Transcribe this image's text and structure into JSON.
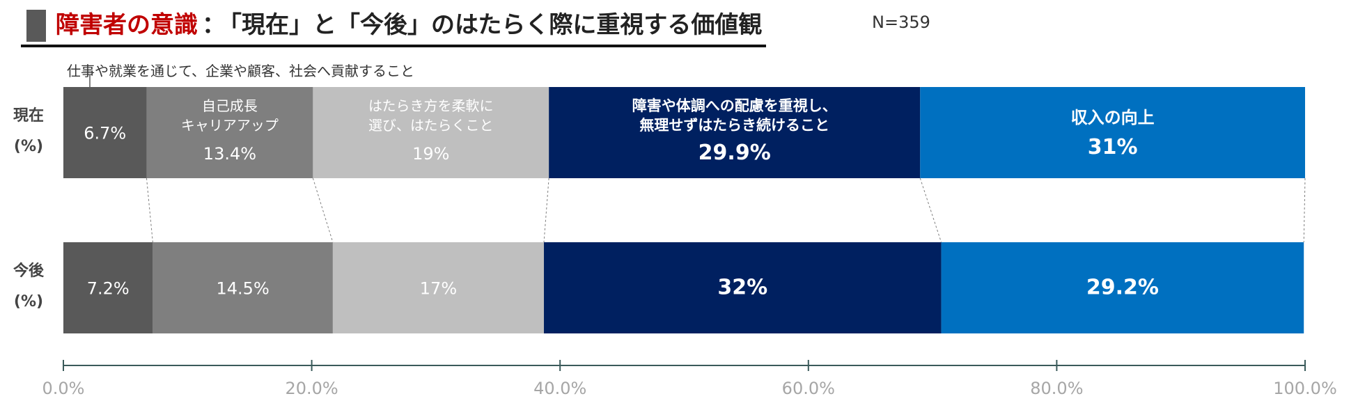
{
  "title": {
    "accent": "障害者の意識",
    "separator": "：",
    "main": "「現在」と「今後」のはたらく際に重視する価値観"
  },
  "sample_size": "N=359",
  "colors": {
    "title_accent": "#c00000",
    "seg1": "#595959",
    "seg2": "#7f7f7f",
    "seg3": "#bfbfbf",
    "seg4": "#002060",
    "seg5": "#0070c0",
    "axis": "#3a5a5a"
  },
  "chart_data": {
    "type": "bar",
    "orientation": "horizontal",
    "stacked": true,
    "percent_stacked": true,
    "categories": [
      "現在\n(%)",
      "今後\n(%)"
    ],
    "series": [
      {
        "name": "仕事や就業を通じて、企業や顧客、社会へ貢献すること",
        "values": [
          6.7,
          7.2
        ],
        "labels": [
          "6.7%",
          "7.2%"
        ]
      },
      {
        "name": "自己成長\nキャリアアップ",
        "values": [
          13.4,
          14.5
        ],
        "labels": [
          "13.4%",
          "14.5%"
        ]
      },
      {
        "name": "はたらき方を柔軟に\n選び、はたらくこと",
        "values": [
          19,
          17
        ],
        "labels": [
          "19%",
          "17%"
        ]
      },
      {
        "name": "障害や体調への配慮を重視し、\n無理せずはたらき続けること",
        "values": [
          29.9,
          32
        ],
        "labels": [
          "29.9%",
          "32%"
        ]
      },
      {
        "name": "収入の向上",
        "values": [
          31,
          29.2
        ],
        "labels": [
          "31%",
          "29.2%"
        ]
      }
    ],
    "xlim": [
      0,
      100
    ],
    "xticks": [
      "0.0%",
      "20.0%",
      "40.0%",
      "60.0%",
      "80.0%",
      "100.0%"
    ],
    "grid": false,
    "legend": "inline labels inside first-row segments"
  }
}
